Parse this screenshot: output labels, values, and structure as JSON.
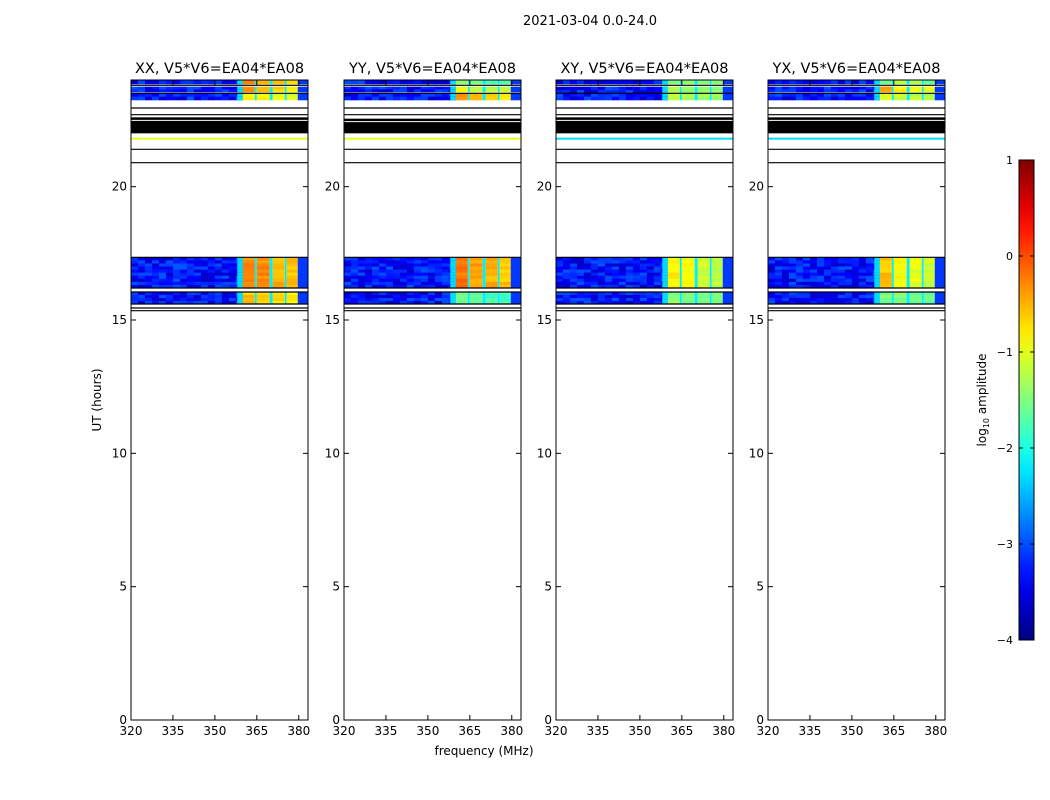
{
  "chart_data": {
    "type": "heatmap",
    "suptitle": "2021-03-04 0.0-24.0",
    "xlabel": "frequency (MHz)",
    "ylabel": "UT (hours)",
    "xlim": [
      320,
      383.3
    ],
    "ylim": [
      0,
      24
    ],
    "xticks": [
      320,
      335,
      350,
      365,
      380
    ],
    "yticks": [
      0,
      5,
      10,
      15,
      20
    ],
    "colorbar": {
      "label": "log",
      "label_sub": "10",
      "label_rest": " amplitude",
      "colormap": "jet",
      "range": [
        -4,
        1
      ],
      "ticks": [
        1,
        0,
        -1,
        -2,
        -3,
        -4
      ],
      "tick_labels": [
        "1",
        "0",
        "−1",
        "−2",
        "−3",
        "−4"
      ]
    },
    "channel_blocks_mhz": [
      [
        360,
        364.3
      ],
      [
        365,
        369.6
      ],
      [
        370.7,
        375
      ],
      [
        375.7,
        379.6
      ]
    ],
    "flag_lines_ut": [
      23.8,
      23.5,
      22.95,
      22.7,
      21.4,
      20.9,
      17.35,
      16.2,
      16.05,
      15.6,
      15.45,
      15.35
    ],
    "panels": [
      {
        "title": "XX, V5*V6=EA04*EA08",
        "background_log_amp": -3.3,
        "blocks": [
          {
            "ut": [
              23.85,
              24.0
            ],
            "chans": [
              -0.3,
              -0.4,
              -0.6,
              -0.7
            ]
          },
          {
            "ut": [
              23.55,
              23.75
            ],
            "chans": [
              -0.3,
              -0.5,
              -0.7,
              -0.8
            ]
          },
          {
            "ut": [
              23.25,
              23.5
            ],
            "chans": [
              -0.9,
              -0.9,
              -1.0,
              -1.1
            ]
          },
          {
            "ut": [
              16.2,
              17.35
            ],
            "chans": [
              -0.3,
              -0.3,
              -0.5,
              -0.6
            ]
          },
          {
            "ut": [
              15.6,
              16.05
            ],
            "chans": [
              -0.6,
              -0.6,
              -0.7,
              -0.8
            ]
          }
        ],
        "black_band_ut": [
          22.0,
          22.6
        ],
        "line_ut": 21.8,
        "line_log_amp": -1.0
      },
      {
        "title": "YY, V5*V6=EA04*EA08",
        "background_log_amp": -3.3,
        "blocks": [
          {
            "ut": [
              23.85,
              24.0
            ],
            "chans": [
              -1.4,
              -1.6,
              -1.8,
              -1.7
            ]
          },
          {
            "ut": [
              23.55,
              23.75
            ],
            "chans": [
              -1.0,
              -1.1,
              -1.2,
              -1.1
            ]
          },
          {
            "ut": [
              23.25,
              23.5
            ],
            "chans": [
              -0.4,
              -0.6,
              -0.7,
              -0.9
            ]
          },
          {
            "ut": [
              16.2,
              17.35
            ],
            "chans": [
              -0.2,
              -0.4,
              -0.5,
              -0.6
            ]
          },
          {
            "ut": [
              15.6,
              16.05
            ],
            "chans": [
              -1.6,
              -1.7,
              -1.8,
              -1.8
            ]
          }
        ],
        "black_band_ut": [
          22.0,
          22.55
        ],
        "line_ut": 21.8,
        "line_log_amp": -1.0
      },
      {
        "title": "XY, V5*V6=EA04*EA08",
        "background_log_amp": -3.3,
        "blocks": [
          {
            "ut": [
              23.85,
              24.0
            ],
            "chans": [
              -1.4,
              -1.4,
              -1.5,
              -1.5
            ]
          },
          {
            "ut": [
              23.25,
              23.75
            ],
            "chans": [
              -1.2,
              -1.3,
              -1.3,
              -1.4
            ]
          },
          {
            "ut": [
              16.2,
              17.35
            ],
            "chans": [
              -0.8,
              -0.9,
              -1.1,
              -1.2
            ]
          },
          {
            "ut": [
              15.6,
              16.05
            ],
            "chans": [
              -1.4,
              -1.5,
              -1.5,
              -1.6
            ]
          }
        ],
        "black_band_ut": [
          22.0,
          22.6
        ],
        "line_ut": 21.8,
        "line_log_amp": -2.3
      },
      {
        "title": "YX, V5*V6=EA04*EA08",
        "background_log_amp": -3.3,
        "blocks": [
          {
            "ut": [
              23.85,
              24.0
            ],
            "chans": [
              -1.6,
              -1.2,
              -1.3,
              -1.5
            ]
          },
          {
            "ut": [
              23.55,
              23.75
            ],
            "chans": [
              -0.5,
              -0.8,
              -0.9,
              -1.0
            ]
          },
          {
            "ut": [
              23.25,
              23.5
            ],
            "chans": [
              -1.1,
              -1.1,
              -1.2,
              -1.2
            ]
          },
          {
            "ut": [
              16.2,
              17.35
            ],
            "chans": [
              -0.6,
              -0.9,
              -1.0,
              -1.1
            ]
          },
          {
            "ut": [
              15.6,
              16.05
            ],
            "chans": [
              -1.5,
              -1.5,
              -1.6,
              -1.6
            ]
          }
        ],
        "black_band_ut": [
          22.0,
          22.6
        ],
        "line_ut": 21.8,
        "line_log_amp": -2.3
      }
    ]
  }
}
